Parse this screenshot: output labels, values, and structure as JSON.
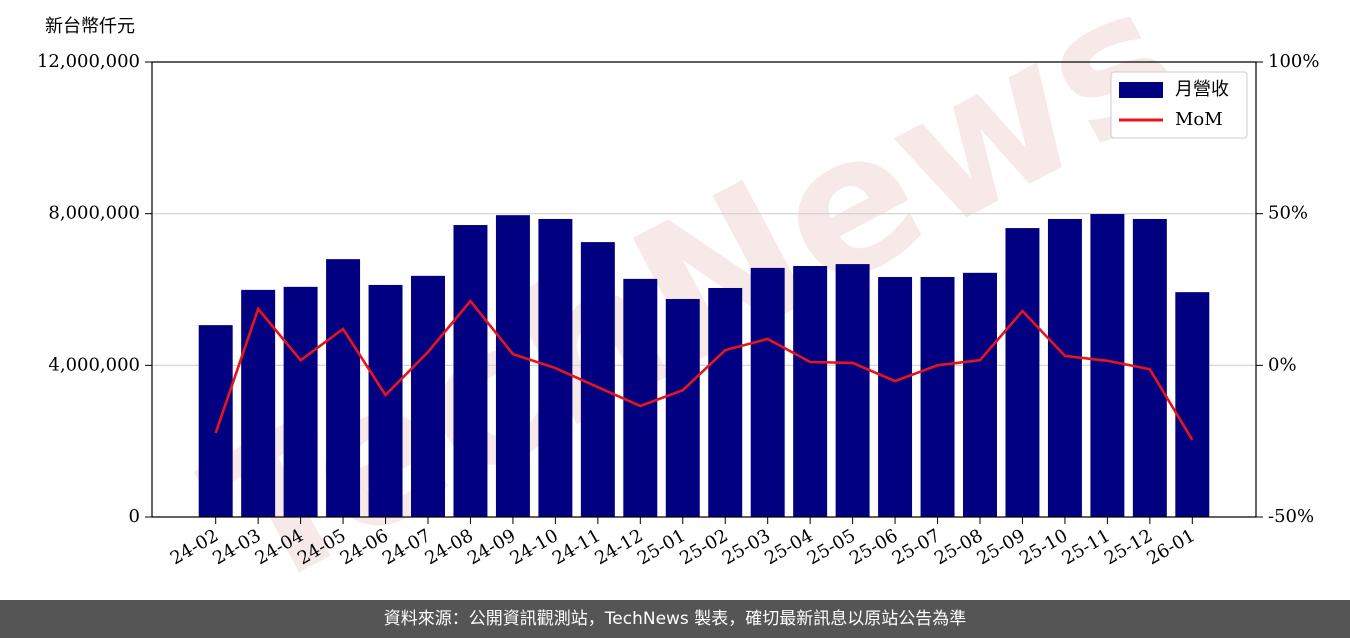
{
  "chart_data": {
    "type": "bar",
    "y_label": "新台幣仟元",
    "watermark": "TechNews",
    "categories": [
      "24-02",
      "24-03",
      "24-04",
      "24-05",
      "24-06",
      "24-07",
      "24-08",
      "24-09",
      "24-10",
      "24-11",
      "24-12",
      "25-01",
      "25-02",
      "25-03",
      "25-04",
      "25-05",
      "25-06",
      "25-07",
      "25-08",
      "25-09",
      "25-10",
      "25-11",
      "25-12",
      "26-01"
    ],
    "series": [
      {
        "name": "月營收",
        "type": "bar",
        "color": "#000080",
        "values": [
          5060000,
          5990000,
          6070000,
          6800000,
          6120000,
          6360000,
          7700000,
          7960000,
          7860000,
          7250000,
          6280000,
          5750000,
          6040000,
          6570000,
          6620000,
          6670000,
          6330000,
          6330000,
          6440000,
          7620000,
          7860000,
          7990000,
          7860000,
          5930000
        ]
      },
      {
        "name": "MoM",
        "type": "line",
        "axis": "y2",
        "color": "#e8141c",
        "values": [
          -22.3,
          18.6,
          1.7,
          12.0,
          -9.8,
          4.4,
          21.2,
          3.7,
          -0.9,
          -7.2,
          -13.4,
          -8.2,
          5.0,
          8.7,
          1.1,
          0.8,
          -5.2,
          0,
          1.7,
          17.9,
          3.1,
          1.5,
          -1.3,
          -24.6
        ]
      }
    ],
    "ylim": [
      0,
      12000000
    ],
    "yticks": [
      0,
      {
        "value": 4000000,
        "label": "4,000,000"
      },
      {
        "value": 8000000,
        "label": "8,000,000"
      },
      {
        "value": 12000000,
        "label": "12,000,000"
      }
    ],
    "y2lim": [
      -50,
      100
    ],
    "y2ticks": [
      {
        "value": -50,
        "label": "-50%"
      },
      {
        "value": 0,
        "label": "0%"
      },
      {
        "value": 50,
        "label": "50%"
      },
      {
        "value": 100,
        "label": "100%"
      }
    ],
    "grid": true,
    "legend": "upper right",
    "footer": "資料來源：公開資訊觀測站，TechNews 製表，確切最新訊息以原站公告為準"
  }
}
